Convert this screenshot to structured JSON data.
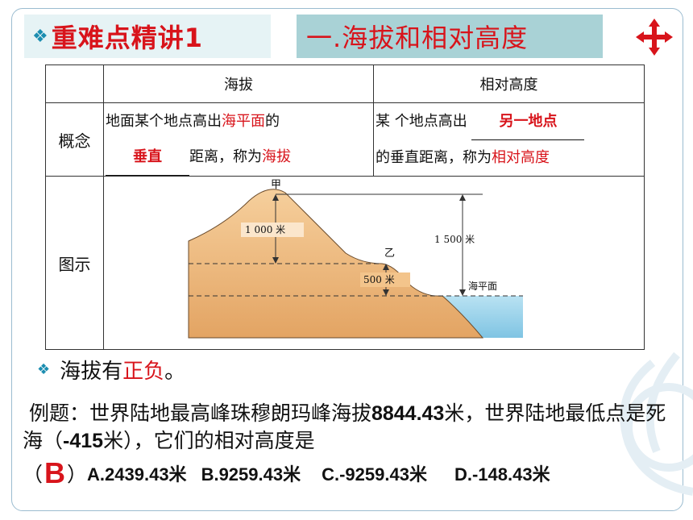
{
  "header": {
    "title": "重难点精讲1",
    "topic": "一.海拔和相对高度"
  },
  "table": {
    "col_altitude": "海拔",
    "col_relative": "相对高度",
    "row_concept": "概念",
    "row_diagram": "图示",
    "concept_altitude": {
      "part1": "地面某个地点高出",
      "highlight1": "海平面",
      "part2": "的",
      "blank_answer": "垂直",
      "part3": "距离，称为",
      "highlight2": "海拔"
    },
    "concept_relative": {
      "part1": "某 个地点高出",
      "blank_answer": "另一地点",
      "part2": "的垂直距离，称为",
      "highlight": "相对高度"
    },
    "diagram": {
      "point_a": "甲",
      "point_b": "乙",
      "label_1000": "1 000 米",
      "label_500": "500 米",
      "label_1500": "1 500 米",
      "label_sea": "海平面"
    }
  },
  "bullet": {
    "prefix": "海拔有",
    "highlight": "正负",
    "suffix": "。"
  },
  "example": {
    "text1": "例题：世界陆地最高峰珠穆朗玛峰海拔",
    "num1": "8844.43",
    "text2": "米，世界陆地最低点是死海（",
    "num2": "-415",
    "text3": "米），它们的相对高度是",
    "open_paren": "（",
    "answer": "B",
    "close_paren": "）",
    "option_a": "A.2439.43米",
    "option_b": "B.9259.43米",
    "option_c": "C.-9259.43米",
    "option_d": "D.-148.43米"
  },
  "colors": {
    "accent_red": "#d8141b",
    "title_bg": "#e6f3f5",
    "topic_bg": "#a9d2d6",
    "bullet_blue": "#1b8db0"
  }
}
